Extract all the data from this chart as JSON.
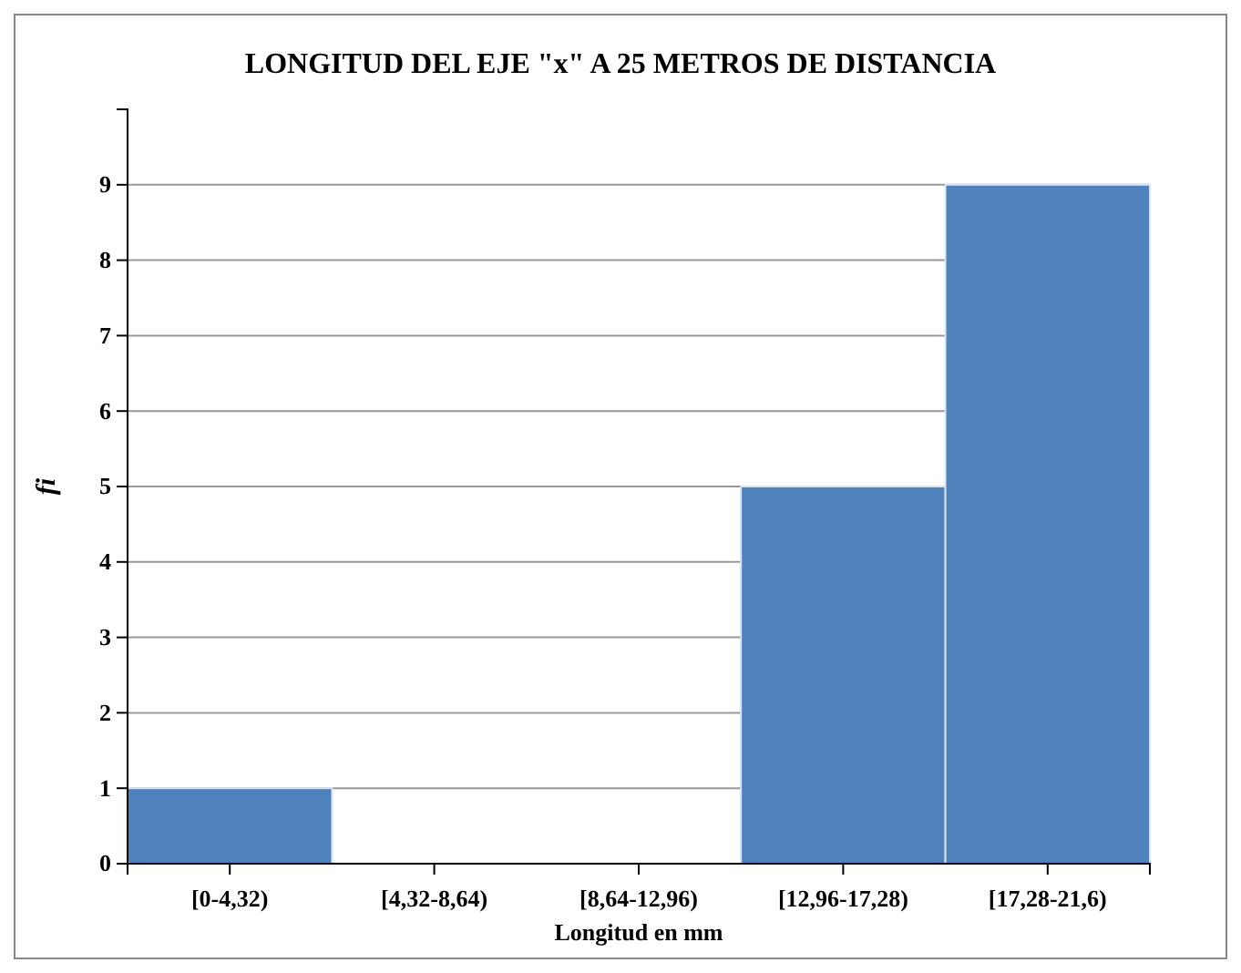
{
  "chart_data": {
    "type": "bar",
    "title": "LONGITUD DEL EJE \"x\"  A 25 METROS DE DISTANCIA",
    "xlabel": "Longitud en mm",
    "ylabel": "fi",
    "categories": [
      "[0-4,32)",
      "[4,32-8,64)",
      "[8,64-12,96)",
      "[12,96-17,28)",
      "[17,28-21,6)"
    ],
    "values": [
      1,
      0,
      0,
      5,
      9
    ],
    "color": "#4f81bd",
    "ylim": [
      0,
      10
    ],
    "yticks": [
      0,
      1,
      2,
      3,
      4,
      5,
      6,
      7,
      8,
      9
    ],
    "grid": "y"
  }
}
